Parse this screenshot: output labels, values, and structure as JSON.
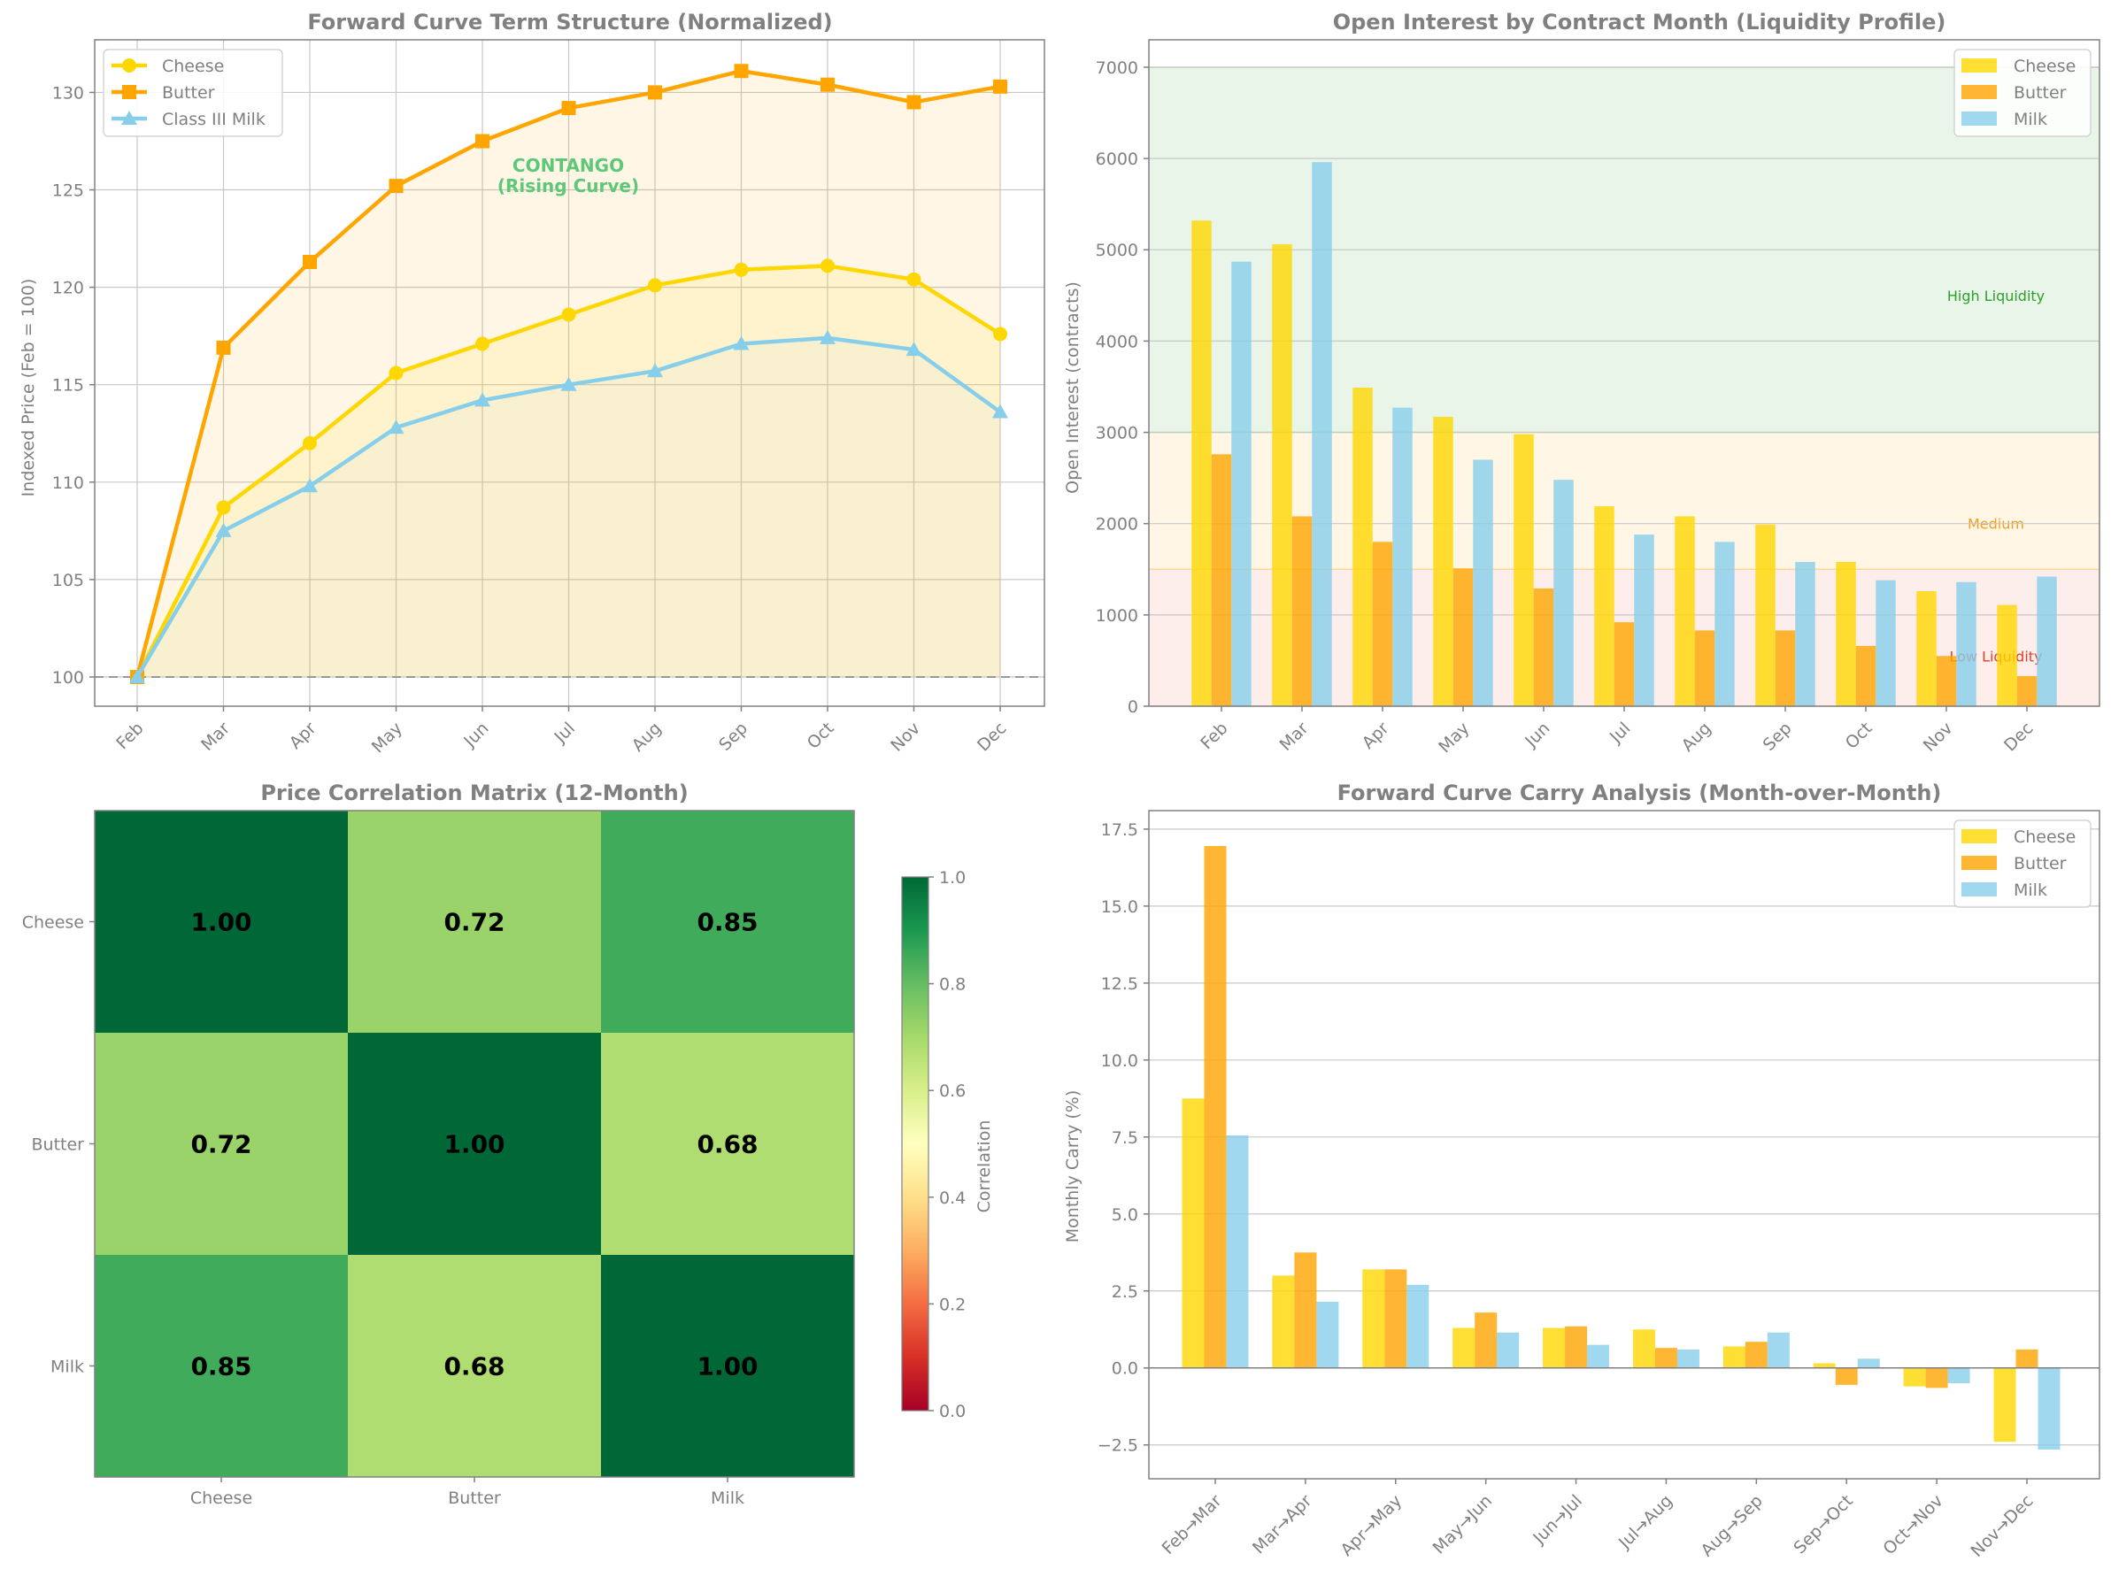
{
  "colors": {
    "cheese": "#FFD700",
    "butter": "#FFA500",
    "milk": "#87CEEB",
    "grid": "#c8c8c8",
    "text": "#808080",
    "contango": "#5cc878"
  },
  "chart_data": [
    {
      "type": "line",
      "title": "Forward Curve Term Structure (Normalized)",
      "xlabel": "",
      "ylabel": "Indexed Price (Feb = 100)",
      "categories": [
        "Feb",
        "Mar",
        "Apr",
        "May",
        "Jun",
        "Jul",
        "Aug",
        "Sep",
        "Oct",
        "Nov",
        "Dec"
      ],
      "ylim": [
        98.5,
        132.7
      ],
      "yticks": [
        100,
        105,
        110,
        115,
        120,
        125,
        130
      ],
      "reference_line": 100,
      "series": [
        {
          "name": "Cheese",
          "key": "cheese",
          "marker": "circle",
          "values": [
            100,
            108.7,
            112.0,
            115.6,
            117.1,
            118.6,
            120.1,
            120.9,
            121.1,
            120.4,
            117.6
          ]
        },
        {
          "name": "Butter",
          "key": "butter",
          "marker": "square",
          "values": [
            100,
            116.9,
            121.3,
            125.2,
            127.5,
            129.2,
            130.0,
            131.1,
            130.4,
            129.5,
            130.3
          ]
        },
        {
          "name": "Class III Milk",
          "key": "milk",
          "marker": "triangle",
          "values": [
            100,
            107.5,
            109.8,
            112.8,
            114.2,
            115.0,
            115.7,
            117.1,
            117.4,
            116.8,
            113.6
          ]
        }
      ],
      "annotation": {
        "line1": "CONTANGO",
        "line2": "(Rising Curve)"
      },
      "legend": "top-left"
    },
    {
      "type": "bar",
      "title": "Open Interest by Contract Month (Liquidity Profile)",
      "xlabel": "",
      "ylabel": "Open Interest (contracts)",
      "categories": [
        "Feb",
        "Mar",
        "Apr",
        "May",
        "Jun",
        "Jul",
        "Aug",
        "Sep",
        "Oct",
        "Nov",
        "Dec"
      ],
      "ylim": [
        0,
        7300
      ],
      "yticks": [
        0,
        1000,
        2000,
        3000,
        4000,
        5000,
        6000,
        7000
      ],
      "series": [
        {
          "name": "Cheese",
          "key": "cheese",
          "values": [
            5320,
            5060,
            3490,
            3170,
            2980,
            2190,
            2080,
            1990,
            1580,
            1260,
            1110
          ]
        },
        {
          "name": "Butter",
          "key": "butter",
          "values": [
            2760,
            2080,
            1800,
            1510,
            1290,
            920,
            830,
            830,
            660,
            550,
            330
          ]
        },
        {
          "name": "Milk",
          "key": "milk",
          "values": [
            4870,
            5960,
            3270,
            2700,
            2480,
            1880,
            1800,
            1580,
            1380,
            1360,
            1420
          ]
        }
      ],
      "zones": [
        {
          "label": "High Liquidity",
          "from": 3000,
          "to": 7000,
          "color": "#2ca02c",
          "text_color": "#2ca02c",
          "label_value": 4500
        },
        {
          "label": "Medium",
          "from": 1500,
          "to": 3000,
          "color": "#ffa500",
          "text_color": "#f0a020",
          "label_value": 2000
        },
        {
          "label": "Low Liquidity",
          "from": 0,
          "to": 1500,
          "color": "#e74c3c",
          "text_color": "#e0402a",
          "label_value": 550
        }
      ],
      "legend": "top-right"
    },
    {
      "type": "heatmap",
      "title": "Price Correlation Matrix (12-Month)",
      "rows": [
        "Cheese",
        "Butter",
        "Milk"
      ],
      "cols": [
        "Cheese",
        "Butter",
        "Milk"
      ],
      "values": [
        [
          1.0,
          0.72,
          0.85
        ],
        [
          0.72,
          1.0,
          0.68
        ],
        [
          0.85,
          0.68,
          1.0
        ]
      ],
      "value_labels": [
        [
          "1.00",
          "0.72",
          "0.85"
        ],
        [
          "0.72",
          "1.00",
          "0.68"
        ],
        [
          "0.85",
          "0.68",
          "1.00"
        ]
      ],
      "colorbar": {
        "label": "Correlation",
        "range": [
          0,
          1
        ],
        "ticks": [
          "0.0",
          "0.2",
          "0.4",
          "0.6",
          "0.8",
          "1.0"
        ],
        "colormap": "RdYlGn"
      }
    },
    {
      "type": "bar",
      "title": "Forward Curve Carry Analysis (Month-over-Month)",
      "xlabel": "",
      "ylabel": "Monthly Carry (%)",
      "categories": [
        "Feb→Mar",
        "Mar→Apr",
        "Apr→May",
        "May→Jun",
        "Jun→Jul",
        "Jul→Aug",
        "Aug→Sep",
        "Sep→Oct",
        "Oct→Nov",
        "Nov→Dec"
      ],
      "ylim": [
        -3.6,
        18.1
      ],
      "yticks": [
        -2.5,
        0.0,
        2.5,
        5.0,
        7.5,
        10.0,
        12.5,
        15.0,
        17.5
      ],
      "ytick_labels": [
        "−2.5",
        "0.0",
        "2.5",
        "5.0",
        "7.5",
        "10.0",
        "12.5",
        "15.0",
        "17.5"
      ],
      "series": [
        {
          "name": "Cheese",
          "key": "cheese",
          "values": [
            8.75,
            3.0,
            3.2,
            1.3,
            1.3,
            1.25,
            0.7,
            0.15,
            -0.6,
            -2.4
          ]
        },
        {
          "name": "Butter",
          "key": "butter",
          "values": [
            16.95,
            3.75,
            3.2,
            1.8,
            1.35,
            0.65,
            0.85,
            -0.55,
            -0.65,
            0.6
          ]
        },
        {
          "name": "Milk",
          "key": "milk",
          "values": [
            7.55,
            2.15,
            2.7,
            1.15,
            0.75,
            0.6,
            1.15,
            0.3,
            -0.5,
            -2.65
          ]
        }
      ],
      "legend": "top-right"
    }
  ]
}
